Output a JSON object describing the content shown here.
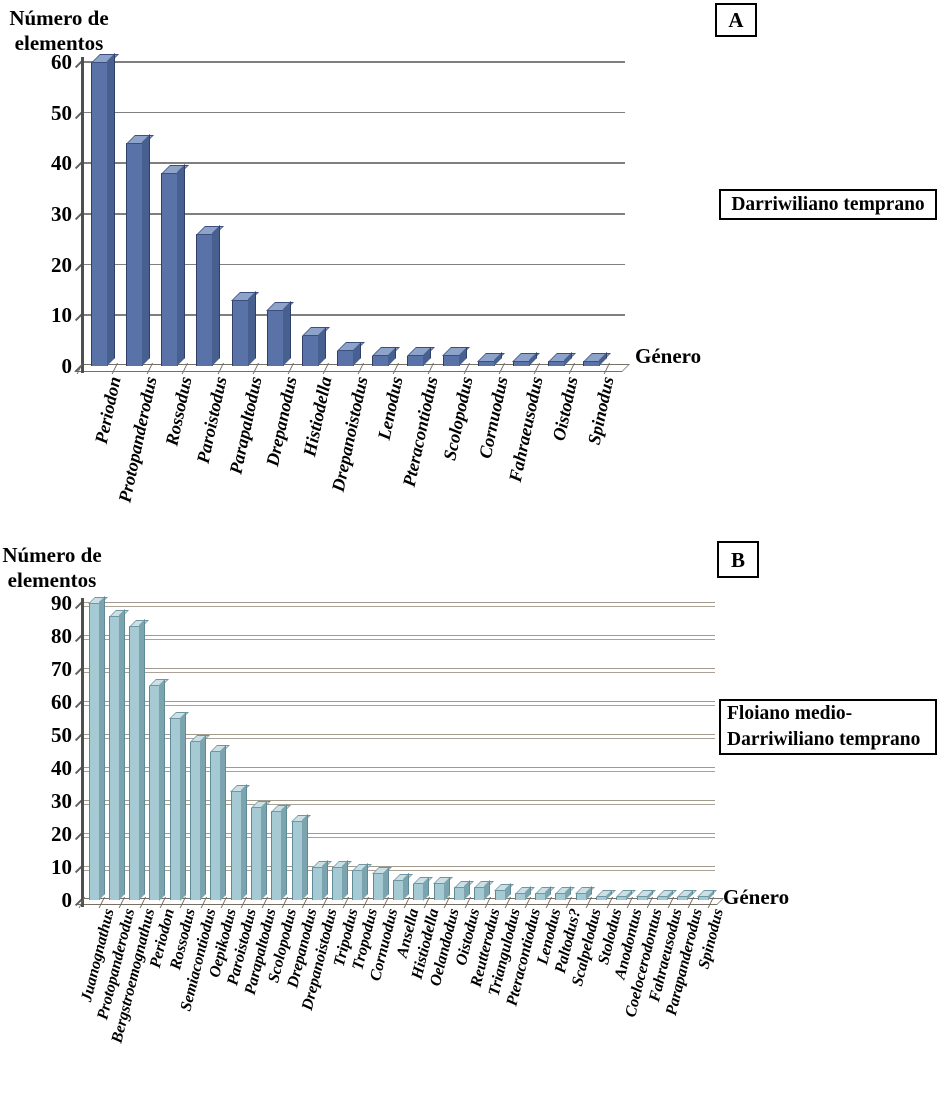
{
  "figure": {
    "background": "#ffffff"
  },
  "chart_data": [
    {
      "type": "bar",
      "panel": "A",
      "ylabel_line1": "Número de",
      "ylabel_line2": "elementos",
      "xlabel": "Género",
      "annotation_lines": [
        "Darriwiliano temprano"
      ],
      "categories": [
        "Periodon",
        "Protopanderodus",
        "Rossodus",
        "Paroistodus",
        "Parapaltodus",
        "Drepanodus",
        "Histiodella",
        "Drepanoistodus",
        "Lenodus",
        "Pteracontiodus",
        "Scolopodus",
        "Cornuodus",
        "Fahraeusodus",
        "Oistodus",
        "Spinodus"
      ],
      "values": [
        60,
        44,
        38,
        26,
        13,
        11,
        6,
        3,
        2,
        2,
        2,
        1,
        1,
        1,
        1
      ],
      "ylim": [
        0,
        60
      ],
      "ytick_step": 10,
      "grid": true,
      "legend": null,
      "bar_color": "#5973a9",
      "bar_top_color": "#8da3c9",
      "bar_side_color": "#47608f",
      "grid_color": "#7f7f7f"
    },
    {
      "type": "bar",
      "panel": "B",
      "ylabel_line1": "Número de",
      "ylabel_line2": "elementos",
      "xlabel": "Género",
      "annotation_lines": [
        "Floiano medio-",
        "Darriwiliano temprano"
      ],
      "categories": [
        "Juanognathus",
        "Protopanderodus",
        "Bergstroemognathus",
        "Periodon",
        "Rossodus",
        "Semiacontiodus",
        "Oepikodus",
        "Paroistodus",
        "Parapaltodus",
        "Scolopodus",
        "Drepanodus",
        "Drepanoistodus",
        "Tripodus",
        "Tropodus",
        "Cornuodus",
        "Ansella",
        "Histiodella",
        "Oelandodus",
        "Oistodus",
        "Reutterodus",
        "Triangulodus",
        "Pteracontiodus",
        "Lenodus",
        "Paltodus?",
        "Scalpelodus",
        "Stolodus",
        "Anodontus",
        "Coelocerodontus",
        "Fahraeusodus",
        "Parapanderodus",
        "Spinodus"
      ],
      "values": [
        90,
        86,
        83,
        65,
        55,
        48,
        45,
        33,
        28,
        27,
        24,
        10,
        10,
        9,
        8,
        6,
        5,
        5,
        4,
        4,
        3,
        2,
        2,
        2,
        2,
        1,
        1,
        1,
        1,
        1,
        1
      ],
      "ylim": [
        0,
        90
      ],
      "ytick_step": 10,
      "grid": true,
      "legend": null,
      "bar_color": "#a5cad4",
      "bar_top_color": "#cbdfe4",
      "bar_side_color": "#7ba4ae",
      "grid_color": "#a29a8d"
    }
  ]
}
